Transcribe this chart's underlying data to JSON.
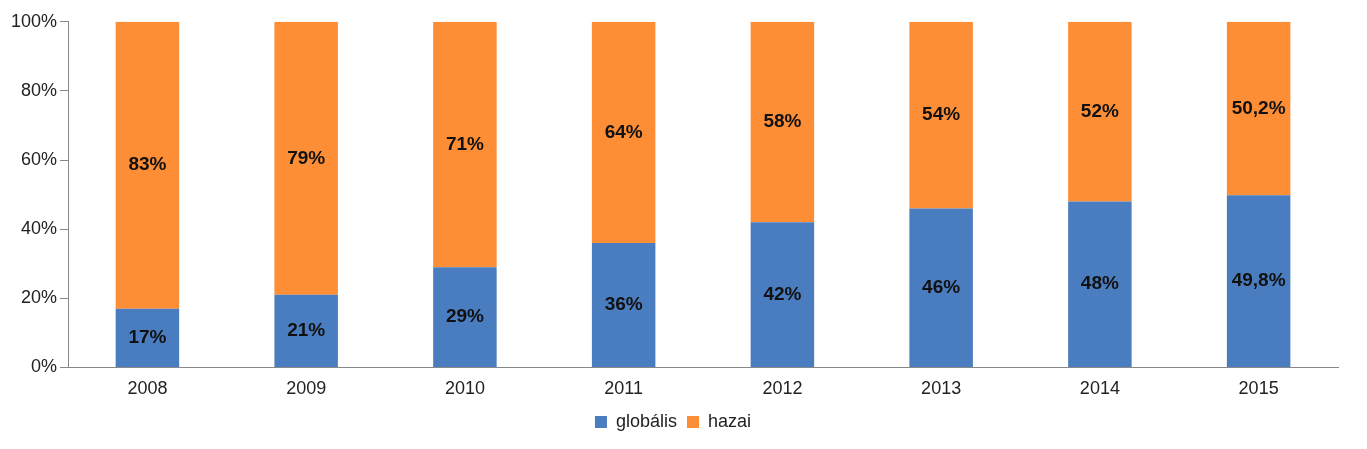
{
  "chart_data": {
    "type": "bar",
    "stacked": true,
    "categories": [
      "2008",
      "2009",
      "2010",
      "2011",
      "2012",
      "2013",
      "2014",
      "2015"
    ],
    "series": [
      {
        "name": "globális",
        "color": "#4a7dbf",
        "values": [
          17,
          21,
          29,
          36,
          42,
          46,
          48,
          49.8
        ],
        "value_labels": [
          "17%",
          "21%",
          "29%",
          "36%",
          "42%",
          "46%",
          "48%",
          "49,8%"
        ]
      },
      {
        "name": "hazai",
        "color": "#fd8e35",
        "values": [
          83,
          79,
          71,
          64,
          58,
          54,
          52,
          50.2
        ],
        "value_labels": [
          "83%",
          "79%",
          "71%",
          "64%",
          "58%",
          "54%",
          "52%",
          "50,2%"
        ]
      }
    ],
    "ylim": [
      0,
      100
    ],
    "yticks": [
      {
        "value": 0,
        "label": "0%"
      },
      {
        "value": 20,
        "label": "20%"
      },
      {
        "value": 40,
        "label": "40%"
      },
      {
        "value": 60,
        "label": "60%"
      },
      {
        "value": 80,
        "label": "80%"
      },
      {
        "value": 100,
        "label": "100%"
      }
    ],
    "legend": "bottom"
  }
}
